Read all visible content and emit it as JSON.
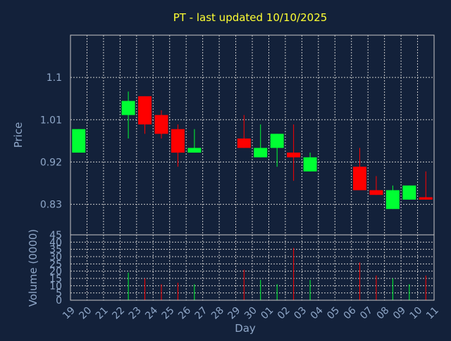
{
  "chart_data": {
    "type": "candlestick",
    "title": "PT - last updated 10/10/2025",
    "xlabel": "Day",
    "ylabel": "Price",
    "volume_label": "Volume (0000)",
    "grid": true,
    "colors": {
      "background": "#13213a",
      "grid": "#c8c8c8",
      "text": "#8fa7c8",
      "title": "#ffff33",
      "up": "#00ff33",
      "down": "#ff0000"
    },
    "price_axis": {
      "ylim": [
        0.765,
        1.19
      ],
      "ticks": [
        0.83,
        0.92,
        1.01,
        1.1
      ],
      "tick_labels": [
        "0.83",
        "0.92",
        "1.01",
        "1.1"
      ]
    },
    "volume_axis": {
      "ylim": [
        0,
        45
      ],
      "ticks": [
        0,
        5,
        10,
        15,
        20,
        25,
        30,
        35,
        40,
        45
      ],
      "tick_labels": [
        "0",
        "5",
        "10",
        "15",
        "20",
        "25",
        "30",
        "35",
        "40",
        "45"
      ]
    },
    "x_tick_labels": [
      "19",
      "20",
      "21",
      "22",
      "23",
      "24",
      "25",
      "26",
      "27",
      "28",
      "29",
      "30",
      "01",
      "02",
      "03",
      "04",
      "05",
      "06",
      "07",
      "08",
      "09",
      "10",
      "11"
    ],
    "candles": [
      {
        "pos": 0,
        "open": 0.94,
        "close": 0.99,
        "high": 0.99,
        "low": 0.94,
        "volume": 0
      },
      {
        "pos": 3,
        "open": 1.02,
        "close": 1.05,
        "high": 1.07,
        "low": 0.97,
        "volume": 19
      },
      {
        "pos": 4,
        "open": 1.06,
        "close": 1.0,
        "high": 1.06,
        "low": 0.98,
        "volume": 15
      },
      {
        "pos": 5,
        "open": 1.02,
        "close": 0.98,
        "high": 1.03,
        "low": 0.97,
        "volume": 11
      },
      {
        "pos": 6,
        "open": 0.99,
        "close": 0.94,
        "high": 1.0,
        "low": 0.91,
        "volume": 12
      },
      {
        "pos": 7,
        "open": 0.94,
        "close": 0.95,
        "high": 0.99,
        "low": 0.94,
        "volume": 11
      },
      {
        "pos": 10,
        "open": 0.97,
        "close": 0.95,
        "high": 1.02,
        "low": 0.95,
        "volume": 21
      },
      {
        "pos": 11,
        "open": 0.93,
        "close": 0.95,
        "high": 1.0,
        "low": 0.93,
        "volume": 14
      },
      {
        "pos": 12,
        "open": 0.95,
        "close": 0.98,
        "high": 0.98,
        "low": 0.91,
        "volume": 11
      },
      {
        "pos": 13,
        "open": 0.94,
        "close": 0.93,
        "high": 1.0,
        "low": 0.88,
        "volume": 36
      },
      {
        "pos": 14,
        "open": 0.9,
        "close": 0.93,
        "high": 0.94,
        "low": 0.9,
        "volume": 14
      },
      {
        "pos": 17,
        "open": 0.91,
        "close": 0.86,
        "high": 0.95,
        "low": 0.86,
        "volume": 26
      },
      {
        "pos": 18,
        "open": 0.86,
        "close": 0.85,
        "high": 0.89,
        "low": 0.85,
        "volume": 17
      },
      {
        "pos": 19,
        "open": 0.82,
        "close": 0.86,
        "high": 0.87,
        "low": 0.82,
        "volume": 15
      },
      {
        "pos": 20,
        "open": 0.84,
        "close": 0.87,
        "high": 0.87,
        "low": 0.84,
        "volume": 11
      },
      {
        "pos": 21,
        "open": 0.845,
        "close": 0.84,
        "high": 0.9,
        "low": 0.84,
        "volume": 17
      }
    ]
  }
}
